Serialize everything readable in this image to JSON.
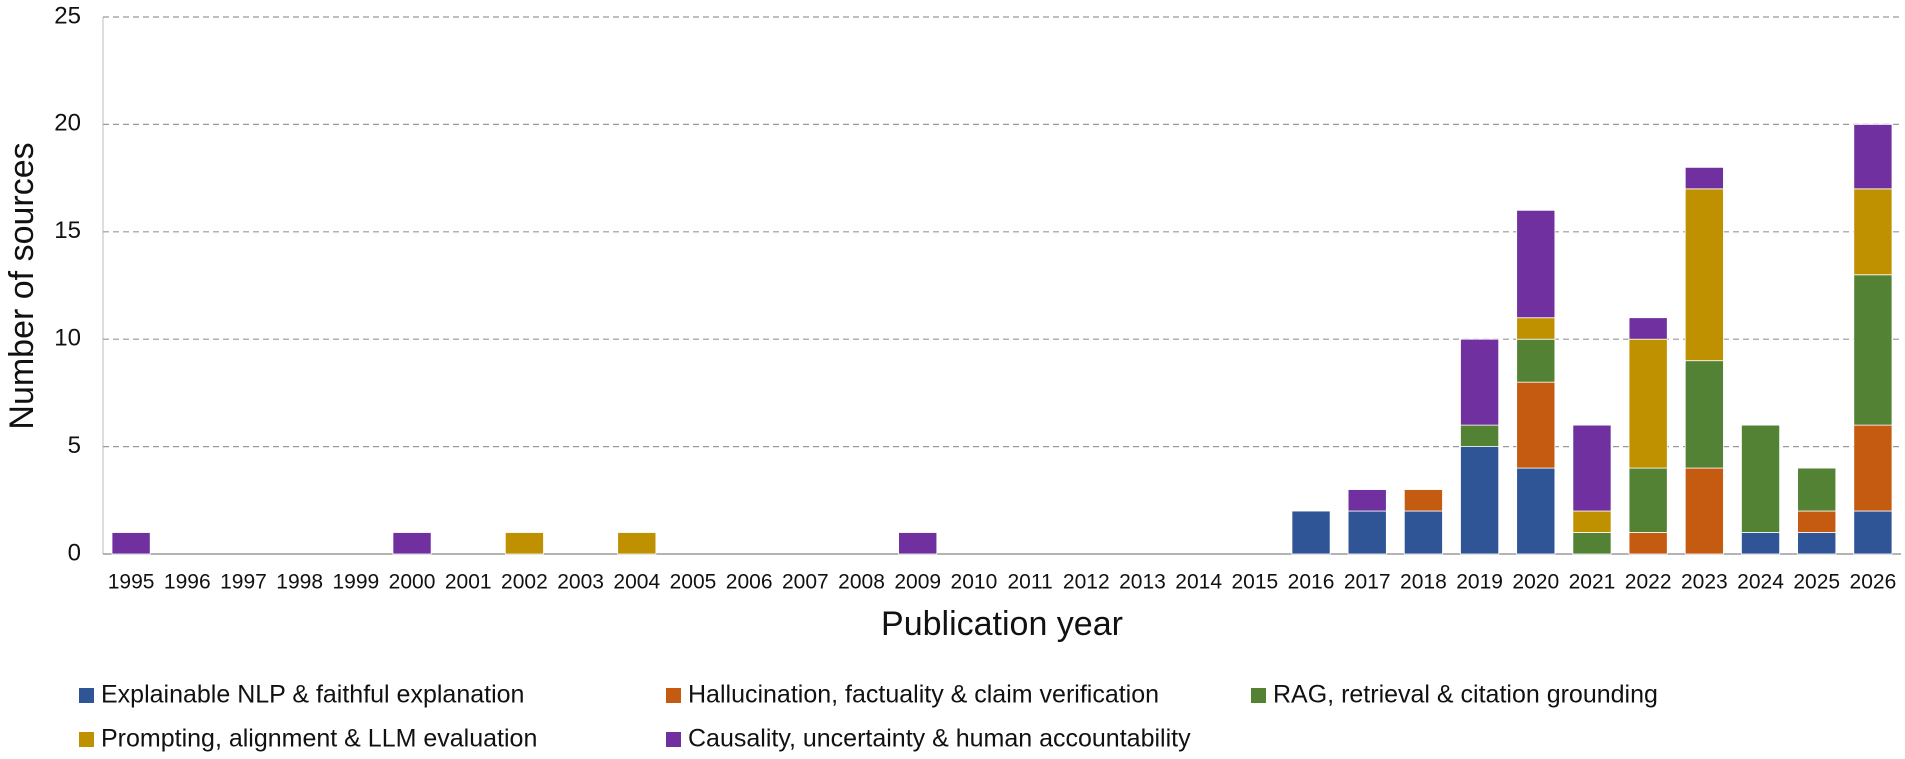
{
  "chart_data": {
    "type": "stacked_bar",
    "x_label": "Publication year",
    "y_label": "Number of sources",
    "categories": [
      "1995",
      "1996",
      "1997",
      "1998",
      "1999",
      "2000",
      "2001",
      "2002",
      "2003",
      "2004",
      "2005",
      "2006",
      "2007",
      "2008",
      "2009",
      "2010",
      "2011",
      "2012",
      "2013",
      "2014",
      "2015",
      "2016",
      "2017",
      "2018",
      "2019",
      "2020",
      "2021",
      "2022",
      "2023",
      "2024",
      "2025",
      "2026"
    ],
    "series": [
      {
        "name": "Explainable NLP & faithful explanation",
        "color": "#2f5597",
        "values": [
          0,
          0,
          0,
          0,
          0,
          0,
          0,
          0,
          0,
          0,
          0,
          0,
          0,
          0,
          0,
          0,
          0,
          0,
          0,
          0,
          0,
          2,
          2,
          2,
          5,
          4,
          0,
          0,
          0,
          1,
          1,
          2
        ]
      },
      {
        "name": "Hallucination, factuality & claim verification",
        "color": "#c55a11",
        "values": [
          0,
          0,
          0,
          0,
          0,
          0,
          0,
          0,
          0,
          0,
          0,
          0,
          0,
          0,
          0,
          0,
          0,
          0,
          0,
          0,
          0,
          0,
          0,
          1,
          0,
          4,
          0,
          1,
          4,
          0,
          1,
          4
        ]
      },
      {
        "name": "RAG, retrieval & citation grounding",
        "color": "#548235",
        "values": [
          0,
          0,
          0,
          0,
          0,
          0,
          0,
          0,
          0,
          0,
          0,
          0,
          0,
          0,
          0,
          0,
          0,
          0,
          0,
          0,
          0,
          0,
          0,
          0,
          1,
          2,
          1,
          3,
          5,
          5,
          2,
          7
        ]
      },
      {
        "name": "Prompting, alignment & LLM evaluation",
        "color": "#bf9000",
        "values": [
          0,
          0,
          0,
          0,
          0,
          0,
          0,
          1,
          0,
          1,
          0,
          0,
          0,
          0,
          0,
          0,
          0,
          0,
          0,
          0,
          0,
          0,
          0,
          0,
          0,
          1,
          1,
          6,
          8,
          0,
          0,
          4
        ]
      },
      {
        "name": "Causality, uncertainty & human accountability",
        "color": "#7030a0",
        "values": [
          1,
          0,
          0,
          0,
          0,
          1,
          0,
          0,
          0,
          0,
          0,
          0,
          0,
          0,
          1,
          0,
          0,
          0,
          0,
          0,
          0,
          0,
          1,
          0,
          4,
          5,
          4,
          1,
          1,
          0,
          0,
          3
        ]
      }
    ],
    "ylim": [
      0,
      25
    ],
    "yticks": [
      0,
      5,
      10,
      15,
      20,
      25
    ],
    "grid": true,
    "legend": "bottom"
  }
}
